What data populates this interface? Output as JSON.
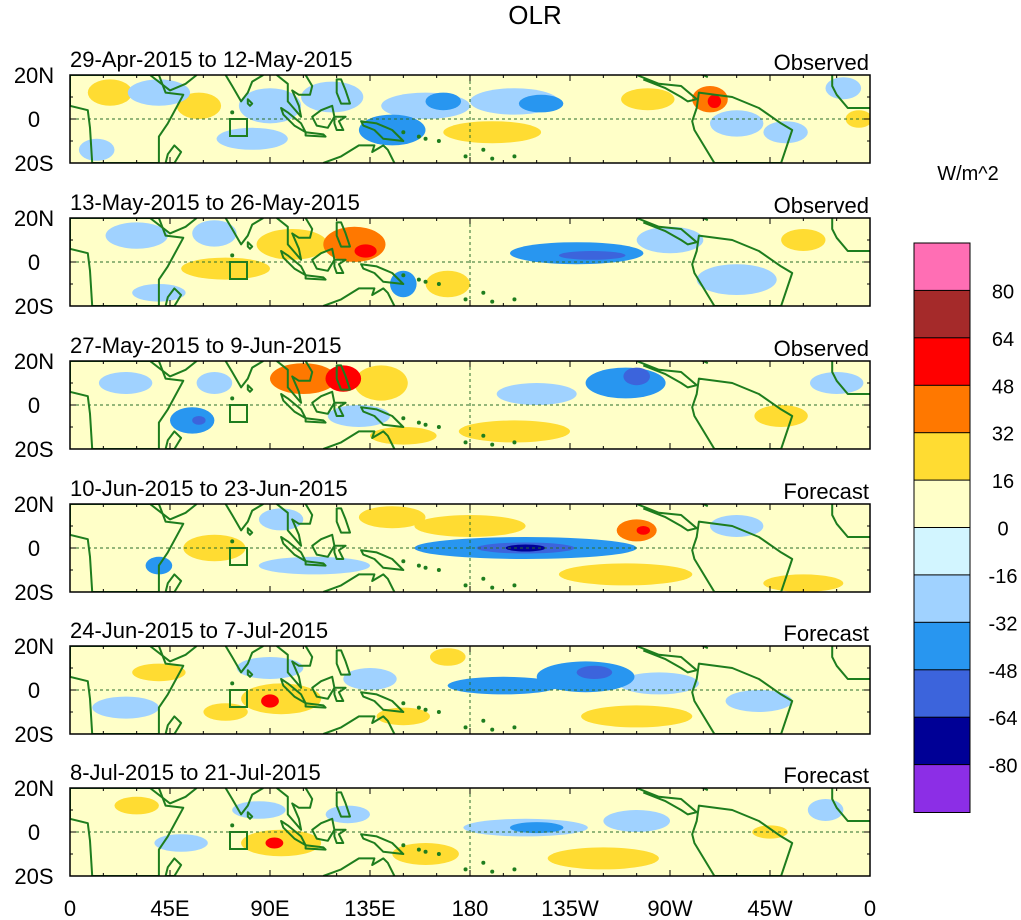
{
  "chart_data": {
    "type": "heatmap",
    "title": "OLR",
    "colorbar": {
      "units": "W/m^2",
      "levels": [
        80,
        64,
        48,
        32,
        16,
        0,
        -16,
        -32,
        -48,
        -64,
        -80
      ],
      "level_labels": [
        "80",
        "64",
        "48",
        "32",
        "16",
        "0",
        "-16",
        "-32",
        "-48",
        "-64",
        "-80"
      ],
      "colors_top_to_bottom": [
        "#ff6eb4",
        "#a52a2a",
        "#ff0000",
        "#ff7800",
        "#ffdc32",
        "#ffffc8",
        "#d2f5ff",
        "#a0d2ff",
        "#2896f0",
        "#3c64dc",
        "#000096",
        "#8c2ee6"
      ]
    },
    "x_axis": {
      "range_deg_east": [
        0,
        360
      ],
      "ticks_deg_east": [
        0,
        45,
        90,
        135,
        180,
        225,
        270,
        315,
        360
      ],
      "tick_labels": [
        "0",
        "45E",
        "90E",
        "135E",
        "180",
        "135W",
        "90W",
        "45W",
        "0"
      ]
    },
    "y_axis": {
      "range_deg": [
        -20,
        20
      ],
      "ticks_deg": [
        20,
        0,
        -20
      ],
      "tick_labels": [
        "20N",
        "0",
        "20S"
      ]
    },
    "panels": [
      {
        "period": "29-Apr-2015 to 12-May-2015",
        "kind": "Observed",
        "anomalies": [
          {
            "lon": 18,
            "lat": 12,
            "rx": 10,
            "ry": 6,
            "value": 18
          },
          {
            "lon": 12,
            "lat": -14,
            "rx": 8,
            "ry": 5,
            "value": -24
          },
          {
            "lon": 40,
            "lat": 12,
            "rx": 14,
            "ry": 6,
            "value": -24
          },
          {
            "lon": 58,
            "lat": 6,
            "rx": 10,
            "ry": 6,
            "value": 22
          },
          {
            "lon": 90,
            "lat": 6,
            "rx": 14,
            "ry": 8,
            "value": -26
          },
          {
            "lon": 82,
            "lat": -9,
            "rx": 16,
            "ry": 5,
            "value": -22
          },
          {
            "lon": 118,
            "lat": 10,
            "rx": 14,
            "ry": 7,
            "value": -28
          },
          {
            "lon": 145,
            "lat": -5,
            "rx": 15,
            "ry": 7,
            "value": -34
          },
          {
            "lon": 160,
            "lat": 6,
            "rx": 20,
            "ry": 6,
            "value": -30
          },
          {
            "lon": 168,
            "lat": 8,
            "rx": 8,
            "ry": 4,
            "value": -46
          },
          {
            "lon": 200,
            "lat": 8,
            "rx": 20,
            "ry": 6,
            "value": -30
          },
          {
            "lon": 212,
            "lat": 7,
            "rx": 10,
            "ry": 4,
            "value": -46
          },
          {
            "lon": 190,
            "lat": -6,
            "rx": 22,
            "ry": 5,
            "value": 22
          },
          {
            "lon": 260,
            "lat": 9,
            "rx": 12,
            "ry": 5,
            "value": 20
          },
          {
            "lon": 288,
            "lat": 9,
            "rx": 8,
            "ry": 6,
            "value": 40
          },
          {
            "lon": 290,
            "lat": 8,
            "rx": 3,
            "ry": 3,
            "value": 55
          },
          {
            "lon": 300,
            "lat": -2,
            "rx": 12,
            "ry": 6,
            "value": -24
          },
          {
            "lon": 322,
            "lat": -6,
            "rx": 10,
            "ry": 5,
            "value": -22
          },
          {
            "lon": 348,
            "lat": 14,
            "rx": 8,
            "ry": 5,
            "value": -24
          },
          {
            "lon": 355,
            "lat": 0,
            "rx": 6,
            "ry": 4,
            "value": 22
          }
        ]
      },
      {
        "period": "13-May-2015 to 26-May-2015",
        "kind": "Observed",
        "anomalies": [
          {
            "lon": 30,
            "lat": 12,
            "rx": 14,
            "ry": 6,
            "value": -22
          },
          {
            "lon": 65,
            "lat": 13,
            "rx": 10,
            "ry": 6,
            "value": -26
          },
          {
            "lon": 70,
            "lat": -3,
            "rx": 20,
            "ry": 5,
            "value": 24
          },
          {
            "lon": 100,
            "lat": 8,
            "rx": 16,
            "ry": 7,
            "value": 26
          },
          {
            "lon": 128,
            "lat": 8,
            "rx": 14,
            "ry": 8,
            "value": 40
          },
          {
            "lon": 133,
            "lat": 5,
            "rx": 5,
            "ry": 3,
            "value": 56
          },
          {
            "lon": 150,
            "lat": -10,
            "rx": 6,
            "ry": 6,
            "value": -36
          },
          {
            "lon": 170,
            "lat": -10,
            "rx": 10,
            "ry": 6,
            "value": 22
          },
          {
            "lon": 228,
            "lat": 4,
            "rx": 30,
            "ry": 5,
            "value": -38
          },
          {
            "lon": 235,
            "lat": 3,
            "rx": 15,
            "ry": 2,
            "value": -52
          },
          {
            "lon": 270,
            "lat": 10,
            "rx": 15,
            "ry": 6,
            "value": -22
          },
          {
            "lon": 300,
            "lat": -8,
            "rx": 18,
            "ry": 7,
            "value": -24
          },
          {
            "lon": 330,
            "lat": 10,
            "rx": 10,
            "ry": 5,
            "value": 20
          },
          {
            "lon": 40,
            "lat": -14,
            "rx": 12,
            "ry": 4,
            "value": -22
          }
        ]
      },
      {
        "period": "27-May-2015 to 9-Jun-2015",
        "kind": "Observed",
        "anomalies": [
          {
            "lon": 25,
            "lat": 10,
            "rx": 12,
            "ry": 5,
            "value": -22
          },
          {
            "lon": 55,
            "lat": -7,
            "rx": 10,
            "ry": 6,
            "value": -40
          },
          {
            "lon": 58,
            "lat": -7,
            "rx": 3,
            "ry": 2,
            "value": -60
          },
          {
            "lon": 65,
            "lat": 10,
            "rx": 8,
            "ry": 5,
            "value": -24
          },
          {
            "lon": 105,
            "lat": 12,
            "rx": 15,
            "ry": 7,
            "value": 36
          },
          {
            "lon": 123,
            "lat": 12,
            "rx": 8,
            "ry": 6,
            "value": 50
          },
          {
            "lon": 140,
            "lat": 10,
            "rx": 12,
            "ry": 8,
            "value": 24
          },
          {
            "lon": 130,
            "lat": -5,
            "rx": 14,
            "ry": 5,
            "value": -20
          },
          {
            "lon": 210,
            "lat": 5,
            "rx": 18,
            "ry": 5,
            "value": -24
          },
          {
            "lon": 250,
            "lat": 10,
            "rx": 18,
            "ry": 7,
            "value": -40
          },
          {
            "lon": 255,
            "lat": 13,
            "rx": 6,
            "ry": 4,
            "value": -56
          },
          {
            "lon": 200,
            "lat": -12,
            "rx": 25,
            "ry": 5,
            "value": 20
          },
          {
            "lon": 150,
            "lat": -14,
            "rx": 15,
            "ry": 4,
            "value": 20
          },
          {
            "lon": 345,
            "lat": 10,
            "rx": 12,
            "ry": 5,
            "value": -22
          },
          {
            "lon": 320,
            "lat": -5,
            "rx": 12,
            "ry": 5,
            "value": 20
          }
        ]
      },
      {
        "period": "10-Jun-2015 to 23-Jun-2015",
        "kind": "Forecast",
        "anomalies": [
          {
            "lon": 65,
            "lat": 0,
            "rx": 14,
            "ry": 6,
            "value": 24
          },
          {
            "lon": 40,
            "lat": -8,
            "rx": 6,
            "ry": 4,
            "value": -36
          },
          {
            "lon": 95,
            "lat": 13,
            "rx": 10,
            "ry": 5,
            "value": -22
          },
          {
            "lon": 145,
            "lat": 14,
            "rx": 15,
            "ry": 5,
            "value": 22
          },
          {
            "lon": 180,
            "lat": 10,
            "rx": 25,
            "ry": 5,
            "value": 20
          },
          {
            "lon": 205,
            "lat": 0,
            "rx": 50,
            "ry": 5,
            "value": -36
          },
          {
            "lon": 205,
            "lat": 0,
            "rx": 22,
            "ry": 2.5,
            "value": -55
          },
          {
            "lon": 205,
            "lat": 0,
            "rx": 9,
            "ry": 1.6,
            "value": -72
          },
          {
            "lon": 255,
            "lat": 8,
            "rx": 9,
            "ry": 5,
            "value": 36
          },
          {
            "lon": 258,
            "lat": 8,
            "rx": 3,
            "ry": 2,
            "value": 55
          },
          {
            "lon": 110,
            "lat": -8,
            "rx": 25,
            "ry": 4,
            "value": -20
          },
          {
            "lon": 300,
            "lat": 10,
            "rx": 12,
            "ry": 5,
            "value": -20
          },
          {
            "lon": 250,
            "lat": -12,
            "rx": 30,
            "ry": 5,
            "value": 20
          },
          {
            "lon": 330,
            "lat": -16,
            "rx": 18,
            "ry": 4,
            "value": 22
          }
        ]
      },
      {
        "period": "24-Jun-2015 to 7-Jul-2015",
        "kind": "Forecast",
        "anomalies": [
          {
            "lon": 95,
            "lat": -4,
            "rx": 18,
            "ry": 7,
            "value": 32
          },
          {
            "lon": 90,
            "lat": -5,
            "rx": 4,
            "ry": 3,
            "value": 52
          },
          {
            "lon": 70,
            "lat": -10,
            "rx": 10,
            "ry": 4,
            "value": 20
          },
          {
            "lon": 90,
            "lat": 10,
            "rx": 15,
            "ry": 5,
            "value": -22
          },
          {
            "lon": 135,
            "lat": 5,
            "rx": 12,
            "ry": 5,
            "value": -20
          },
          {
            "lon": 170,
            "lat": 15,
            "rx": 8,
            "ry": 4,
            "value": 20
          },
          {
            "lon": 195,
            "lat": 2,
            "rx": 25,
            "ry": 4,
            "value": -36
          },
          {
            "lon": 232,
            "lat": 6,
            "rx": 22,
            "ry": 7,
            "value": -40
          },
          {
            "lon": 236,
            "lat": 8,
            "rx": 8,
            "ry": 3,
            "value": -55
          },
          {
            "lon": 265,
            "lat": 3,
            "rx": 18,
            "ry": 5,
            "value": -24
          },
          {
            "lon": 255,
            "lat": -12,
            "rx": 25,
            "ry": 5,
            "value": 20
          },
          {
            "lon": 310,
            "lat": -5,
            "rx": 15,
            "ry": 5,
            "value": -20
          },
          {
            "lon": 25,
            "lat": -8,
            "rx": 15,
            "ry": 5,
            "value": -20
          },
          {
            "lon": 40,
            "lat": 8,
            "rx": 12,
            "ry": 4,
            "value": 20
          },
          {
            "lon": 150,
            "lat": -12,
            "rx": 12,
            "ry": 4,
            "value": 20
          }
        ]
      },
      {
        "period": "8-Jul-2015 to 21-Jul-2015",
        "kind": "Forecast",
        "anomalies": [
          {
            "lon": 95,
            "lat": -5,
            "rx": 18,
            "ry": 6,
            "value": 30
          },
          {
            "lon": 92,
            "lat": -5,
            "rx": 4,
            "ry": 2.5,
            "value": 50
          },
          {
            "lon": 85,
            "lat": 10,
            "rx": 12,
            "ry": 4,
            "value": -22
          },
          {
            "lon": 125,
            "lat": 8,
            "rx": 10,
            "ry": 4,
            "value": -20
          },
          {
            "lon": 205,
            "lat": 2,
            "rx": 28,
            "ry": 4,
            "value": -24
          },
          {
            "lon": 210,
            "lat": 2,
            "rx": 12,
            "ry": 2.5,
            "value": -40
          },
          {
            "lon": 255,
            "lat": 5,
            "rx": 15,
            "ry": 5,
            "value": -22
          },
          {
            "lon": 160,
            "lat": -10,
            "rx": 15,
            "ry": 5,
            "value": 20
          },
          {
            "lon": 240,
            "lat": -12,
            "rx": 25,
            "ry": 5,
            "value": 20
          },
          {
            "lon": 315,
            "lat": 0,
            "rx": 8,
            "ry": 3,
            "value": 24
          },
          {
            "lon": 340,
            "lat": 10,
            "rx": 8,
            "ry": 5,
            "value": -20
          },
          {
            "lon": 30,
            "lat": 12,
            "rx": 10,
            "ry": 4,
            "value": 20
          },
          {
            "lon": 50,
            "lat": -5,
            "rx": 12,
            "ry": 4,
            "value": -20
          }
        ]
      }
    ]
  }
}
